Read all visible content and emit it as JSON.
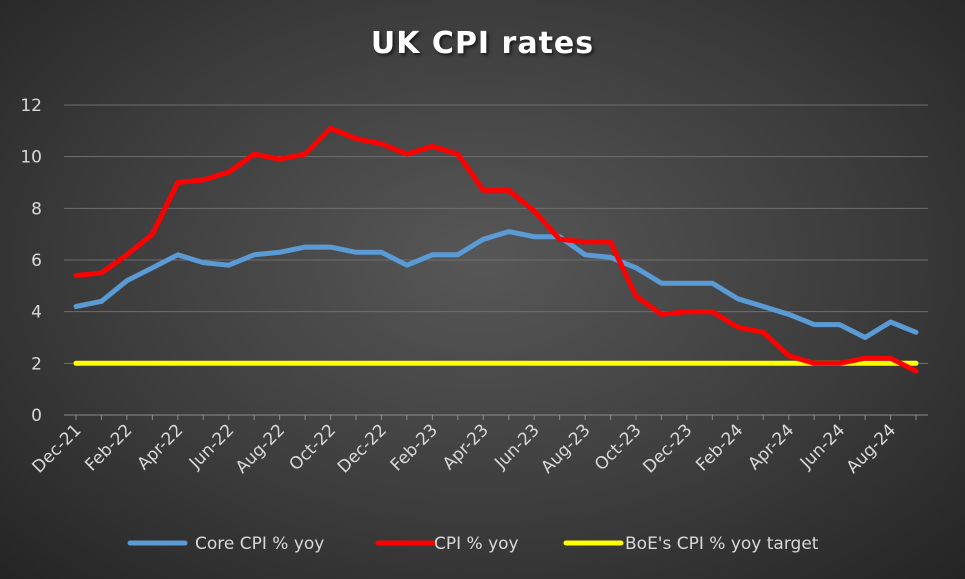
{
  "chart_data": {
    "type": "line",
    "title": "UK CPI rates",
    "xlabel": "",
    "ylabel": "",
    "ylim": [
      0,
      12
    ],
    "yticks": [
      0,
      2,
      4,
      6,
      8,
      10,
      12
    ],
    "grid": "horizontal",
    "legend": "bottom",
    "categories": [
      "Dec-21",
      "Jan-22",
      "Feb-22",
      "Mar-22",
      "Apr-22",
      "May-22",
      "Jun-22",
      "Jul-22",
      "Aug-22",
      "Sep-22",
      "Oct-22",
      "Nov-22",
      "Dec-22",
      "Jan-23",
      "Feb-23",
      "Mar-23",
      "Apr-23",
      "May-23",
      "Jun-23",
      "Jul-23",
      "Aug-23",
      "Sep-23",
      "Oct-23",
      "Nov-23",
      "Dec-23",
      "Jan-24",
      "Feb-24",
      "Mar-24",
      "Apr-24",
      "May-24",
      "Jun-24",
      "Jul-24",
      "Aug-24",
      "Sep-24"
    ],
    "xtick_labels": [
      "Dec-21",
      "Feb-22",
      "Apr-22",
      "Jun-22",
      "Aug-22",
      "Oct-22",
      "Dec-22",
      "Feb-23",
      "Apr-23",
      "Jun-23",
      "Aug-23",
      "Oct-23",
      "Dec-23",
      "Feb-24",
      "Apr-24",
      "Jun-24",
      "Aug-24"
    ],
    "series": [
      {
        "name": "Core CPI % yoy",
        "color": "#5b9bd5",
        "values": [
          4.2,
          4.4,
          5.2,
          5.7,
          6.2,
          5.9,
          5.8,
          6.2,
          6.3,
          6.5,
          6.5,
          6.3,
          6.3,
          5.8,
          6.2,
          6.2,
          6.8,
          7.1,
          6.9,
          6.9,
          6.2,
          6.1,
          5.7,
          5.1,
          5.1,
          5.1,
          4.5,
          4.2,
          3.9,
          3.5,
          3.5,
          3.0,
          3.6,
          3.2
        ]
      },
      {
        "name": "CPI % yoy",
        "color": "#ff0000",
        "values": [
          5.4,
          5.5,
          6.2,
          7.0,
          9.0,
          9.1,
          9.4,
          10.1,
          9.9,
          10.1,
          11.1,
          10.7,
          10.5,
          10.1,
          10.4,
          10.1,
          8.7,
          8.7,
          7.9,
          6.8,
          6.7,
          6.7,
          4.6,
          3.9,
          4.0,
          4.0,
          3.4,
          3.2,
          2.3,
          2.0,
          2.0,
          2.2,
          2.2,
          1.7
        ]
      },
      {
        "name": "BoE's CPI % yoy target",
        "color": "#ffff00",
        "values": [
          2,
          2,
          2,
          2,
          2,
          2,
          2,
          2,
          2,
          2,
          2,
          2,
          2,
          2,
          2,
          2,
          2,
          2,
          2,
          2,
          2,
          2,
          2,
          2,
          2,
          2,
          2,
          2,
          2,
          2,
          2,
          2,
          2,
          2
        ]
      }
    ]
  }
}
